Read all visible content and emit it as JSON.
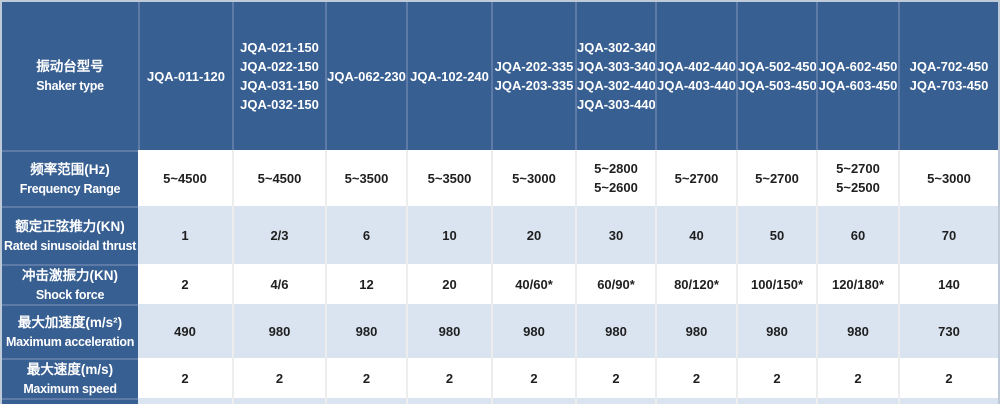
{
  "table": {
    "header": {
      "row_label_zh": "振动台型号",
      "row_label_en": "Shaker type",
      "columns": [
        {
          "models": [
            "JQA-011-120"
          ]
        },
        {
          "models": [
            "JQA-021-150",
            "JQA-022-150",
            "JQA-031-150",
            "JQA-032-150"
          ]
        },
        {
          "models": [
            "JQA-062-230"
          ]
        },
        {
          "models": [
            "JQA-102-240"
          ]
        },
        {
          "models": [
            "JQA-202-335",
            "JQA-203-335"
          ]
        },
        {
          "models": [
            "JQA-302-340",
            "JQA-303-340",
            "JQA-302-440",
            "JQA-303-440"
          ]
        },
        {
          "models": [
            "JQA-402-440",
            "JQA-403-440"
          ]
        },
        {
          "models": [
            "JQA-502-450",
            "JQA-503-450"
          ]
        },
        {
          "models": [
            "JQA-602-450",
            "JQA-603-450"
          ]
        },
        {
          "models": [
            "JQA-702-450",
            "JQA-703-450"
          ]
        }
      ]
    },
    "rows": [
      {
        "label_zh": "频率范围(Hz)",
        "label_en": "Frequency Range",
        "values": [
          [
            "5~4500"
          ],
          [
            "5~4500"
          ],
          [
            "5~3500"
          ],
          [
            "5~3500"
          ],
          [
            "5~3000"
          ],
          [
            "5~2800",
            "5~2600"
          ],
          [
            "5~2700"
          ],
          [
            "5~2700"
          ],
          [
            "5~2700",
            "5~2500"
          ],
          [
            "5~3000"
          ]
        ]
      },
      {
        "label_zh": "额定正弦推力(KN)",
        "label_en": "Rated sinusoidal thrust",
        "values": [
          [
            "1"
          ],
          [
            "2/3"
          ],
          [
            "6"
          ],
          [
            "10"
          ],
          [
            "20"
          ],
          [
            "30"
          ],
          [
            "40"
          ],
          [
            "50"
          ],
          [
            "60"
          ],
          [
            "70"
          ]
        ]
      },
      {
        "label_zh": "冲击激振力(KN)",
        "label_en": "Shock force",
        "values": [
          [
            "2"
          ],
          [
            "4/6"
          ],
          [
            "12"
          ],
          [
            "20"
          ],
          [
            "40/60*"
          ],
          [
            "60/90*"
          ],
          [
            "80/120*"
          ],
          [
            "100/150*"
          ],
          [
            "120/180*"
          ],
          [
            "140"
          ]
        ]
      },
      {
        "label_zh": "最大加速度(m/s²)",
        "label_en": "Maximum acceleration",
        "values": [
          [
            "490"
          ],
          [
            "980"
          ],
          [
            "980"
          ],
          [
            "980"
          ],
          [
            "980"
          ],
          [
            "980"
          ],
          [
            "980"
          ],
          [
            "980"
          ],
          [
            "980"
          ],
          [
            "730"
          ]
        ]
      },
      {
        "label_zh": "最大速度(m/s)",
        "label_en": "Maximum speed",
        "values": [
          [
            "2"
          ],
          [
            "2"
          ],
          [
            "2"
          ],
          [
            "2"
          ],
          [
            "2"
          ],
          [
            "2"
          ],
          [
            "2"
          ],
          [
            "2"
          ],
          [
            "2"
          ],
          [
            "2"
          ]
        ]
      }
    ]
  },
  "colors": {
    "header_blue": "#385f92",
    "header_divider": "#5d7ba6",
    "header_text": "#ffffff",
    "zebra_light_blue": "#dae3f0",
    "zebra_white": "#ffffff",
    "body_divider": "#ededed",
    "outer_border": "#bfcad8",
    "value_text": "#1f1f1f"
  }
}
